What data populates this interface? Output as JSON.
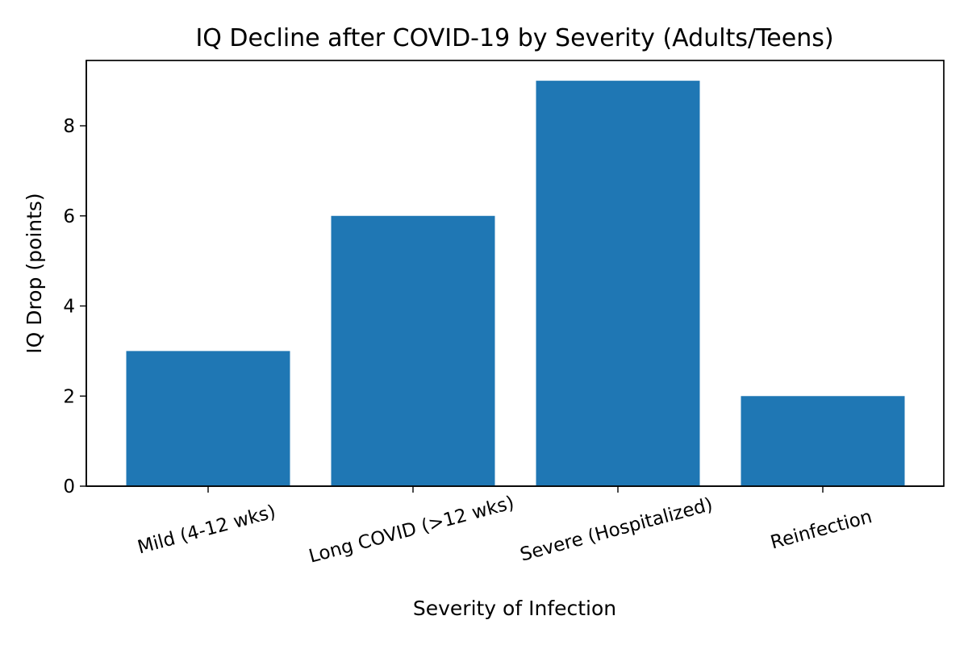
{
  "chart_data": {
    "type": "bar",
    "title": "IQ Decline after COVID-19 by Severity (Adults/Teens)",
    "xlabel": "Severity of Infection",
    "ylabel": "IQ Drop (points)",
    "categories": [
      "Mild (4-12 wks)",
      "Long COVID (>12 wks)",
      "Severe (Hospitalized)",
      "Reinfection"
    ],
    "values": [
      3,
      6,
      9,
      2
    ],
    "ylim": [
      0,
      9.45
    ],
    "yticks": [
      0,
      2,
      4,
      6,
      8
    ],
    "grid": false,
    "bar_color": "#1f77b4",
    "xtick_rotation": -15
  }
}
